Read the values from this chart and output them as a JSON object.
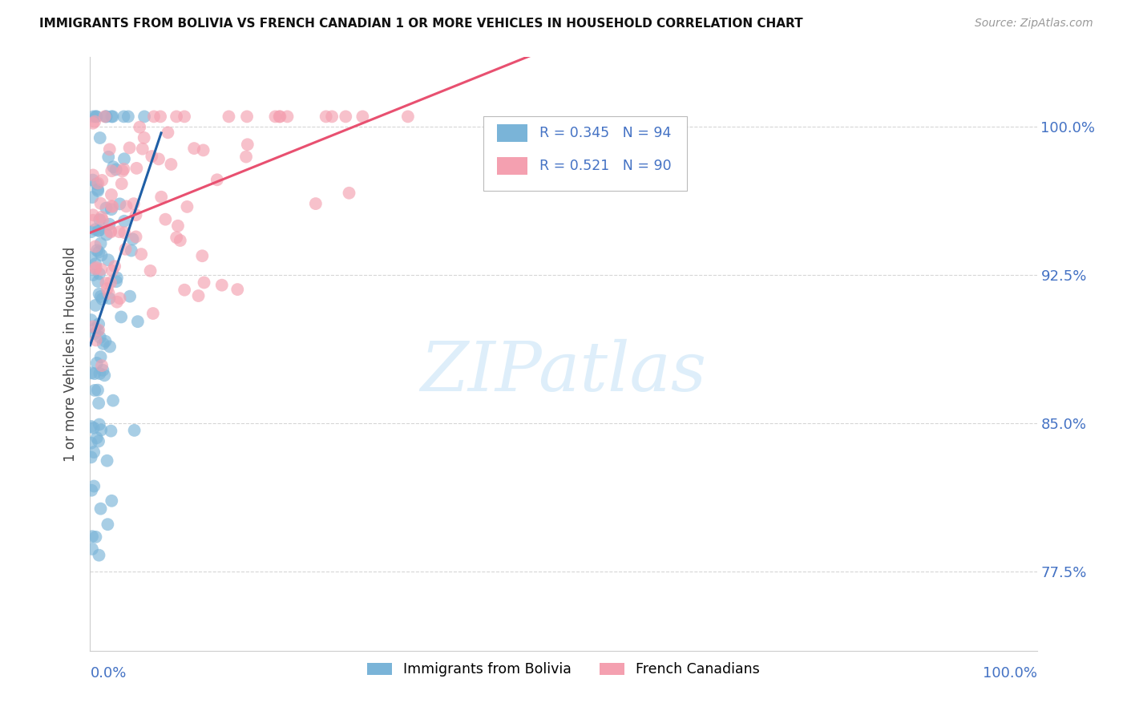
{
  "title": "IMMIGRANTS FROM BOLIVIA VS FRENCH CANADIAN 1 OR MORE VEHICLES IN HOUSEHOLD CORRELATION CHART",
  "source": "Source: ZipAtlas.com",
  "ylabel": "1 or more Vehicles in Household",
  "ytick_labels": [
    "77.5%",
    "85.0%",
    "92.5%",
    "100.0%"
  ],
  "ytick_values": [
    0.775,
    0.85,
    0.925,
    1.0
  ],
  "xlim": [
    0.0,
    1.0
  ],
  "ylim": [
    0.735,
    1.035
  ],
  "legend_label_blue": "Immigrants from Bolivia",
  "legend_label_pink": "French Canadians",
  "blue_color": "#7ab4d8",
  "pink_color": "#f4a0b0",
  "blue_line_color": "#1f5fa6",
  "pink_line_color": "#e85070",
  "r_blue": 0.345,
  "r_pink": 0.521,
  "n_blue": 94,
  "n_pink": 90,
  "legend_text_color": "#4472c4",
  "watermark_color": "#d0e8f8"
}
